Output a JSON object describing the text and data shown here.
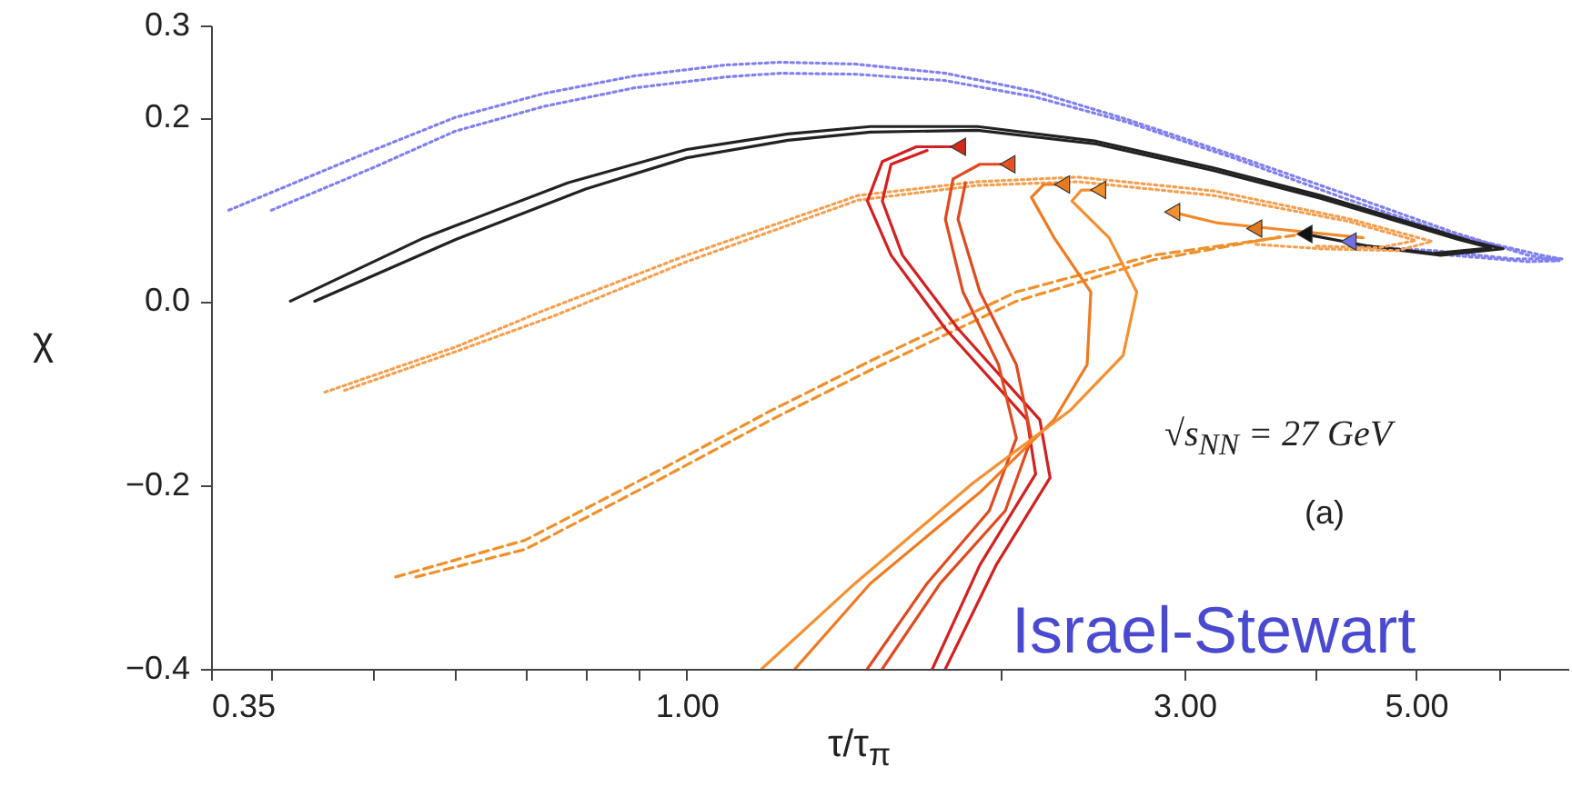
{
  "chart_data": {
    "type": "line",
    "xlabel": "τ/τ$_{π}$",
    "ylabel": "χ",
    "log": "x",
    "xlim": [
      0.35,
      7
    ],
    "ylim": [
      -0.4,
      0.3
    ],
    "xticks": [
      0.35,
      {
        "value": 0.4,
        "label": null
      },
      {
        "value": 0.5,
        "label": null
      },
      {
        "value": 0.6,
        "label": null
      },
      {
        "value": 0.7,
        "label": null
      },
      {
        "value": 0.8,
        "label": null
      },
      {
        "value": 0.9,
        "label": null
      },
      {
        "value": 1,
        "label": "1.00"
      },
      {
        "value": 2,
        "label": null
      },
      {
        "value": 3,
        "label": "3.00"
      },
      {
        "value": 4,
        "label": null
      },
      {
        "value": 5,
        "label": "5.00"
      },
      {
        "value": 6,
        "label": null
      }
    ],
    "yticks": [
      {
        "value": -0.4,
        "label": "−0.4"
      },
      {
        "value": -0.2,
        "label": "−0.2"
      },
      {
        "value": 0,
        "label": "0.0"
      },
      0.2,
      0.3
    ],
    "annotations": [
      "√s$_{NN}$ = 27 GeV",
      "(a)",
      "Israel-Stewart"
    ],
    "series": [
      {
        "color": "#8080f0",
        "line_style": "dotted",
        "x": [
          0.364,
          0.49,
          0.6,
          0.73,
          0.89,
          1.09,
          1.23,
          1.45,
          1.77,
          2.16,
          2.64,
          3.36,
          4.27,
          5.43,
          6.4,
          6.86,
          6.4,
          5.4,
          4.4
        ],
        "values": [
          0.099,
          0.16,
          0.2,
          0.226,
          0.245,
          0.257,
          0.26,
          0.258,
          0.248,
          0.228,
          0.198,
          0.158,
          0.117,
          0.075,
          0.05,
          0.044,
          0.043,
          0.05,
          0.06
        ]
      },
      {
        "color": "#8080f0",
        "line_style": "dotted",
        "x": [
          0.4,
          0.5,
          0.6,
          0.73,
          0.89,
          1.09,
          1.23,
          1.45,
          1.77,
          2.16,
          2.64,
          3.36,
          4.27,
          5.43,
          6.6,
          6.9,
          6.2,
          5.2,
          4.4
        ],
        "values": [
          0.099,
          0.145,
          0.185,
          0.212,
          0.232,
          0.244,
          0.248,
          0.247,
          0.24,
          0.222,
          0.195,
          0.155,
          0.112,
          0.072,
          0.05,
          0.046,
          0.046,
          0.055,
          0.06
        ]
      },
      {
        "color": "#222222",
        "line_style": "solid",
        "x": [
          0.417,
          0.56,
          0.77,
          1.0,
          1.25,
          1.5,
          1.9,
          2.47,
          3.2,
          4.05,
          5.66,
          6.06,
          5.28,
          4.5,
          3.91
        ],
        "values": [
          0.0,
          0.069,
          0.129,
          0.165,
          0.182,
          0.19,
          0.19,
          0.174,
          0.145,
          0.115,
          0.065,
          0.057,
          0.05,
          0.06,
          0.073
        ]
      },
      {
        "color": "#222222",
        "line_style": "solid",
        "x": [
          0.44,
          0.6,
          0.8,
          1.0,
          1.25,
          1.5,
          1.9,
          2.47,
          3.2,
          4.05,
          5.5,
          5.9,
          5.2,
          4.5
        ],
        "values": [
          0.0,
          0.067,
          0.122,
          0.156,
          0.175,
          0.184,
          0.186,
          0.171,
          0.142,
          0.112,
          0.067,
          0.058,
          0.052,
          0.06
        ]
      },
      {
        "color": "#f5a050",
        "line_style": "dotted",
        "x": [
          0.45,
          0.6,
          0.73,
          1.0,
          1.46,
          1.9,
          2.37,
          3.2,
          4.3,
          5.18,
          4.8,
          4.05,
          3.5
        ],
        "values": [
          -0.099,
          -0.05,
          -0.01,
          0.05,
          0.115,
          0.13,
          0.135,
          0.12,
          0.09,
          0.065,
          0.055,
          0.057,
          0.062
        ]
      },
      {
        "color": "#f5a050",
        "line_style": "dotted",
        "x": [
          0.47,
          0.6,
          0.75,
          1.0,
          1.46,
          1.9,
          2.37,
          3.2,
          4.3,
          5.0,
          4.6,
          4.0
        ],
        "values": [
          -0.097,
          -0.055,
          -0.015,
          0.043,
          0.11,
          0.126,
          0.13,
          0.115,
          0.087,
          0.066,
          0.058,
          0.06
        ]
      },
      {
        "color": "#f0902a",
        "line_style": "dashed",
        "x": [
          0.526,
          0.7,
          0.956,
          1.2,
          1.5,
          2.07,
          2.8,
          3.9
        ],
        "values": [
          -0.3,
          -0.26,
          -0.18,
          -0.12,
          -0.065,
          0.01,
          0.05,
          0.073
        ]
      },
      {
        "color": "#f0902a",
        "line_style": "dashed",
        "x": [
          0.55,
          0.7,
          0.956,
          1.2,
          1.5,
          2.07,
          2.8,
          3.7
        ],
        "values": [
          -0.3,
          -0.27,
          -0.19,
          -0.13,
          -0.075,
          0.0,
          0.045,
          0.07
        ]
      },
      {
        "color": "#d42020",
        "line_style": "solid",
        "x": [
          1.72,
          1.91,
          2.16,
          2.12,
          1.77,
          1.57,
          1.49,
          1.54,
          1.66,
          1.82
        ],
        "values": [
          -0.4,
          -0.287,
          -0.188,
          -0.129,
          -0.03,
          0.05,
          0.109,
          0.152,
          0.168,
          0.168
        ]
      },
      {
        "color": "#d42020",
        "line_style": "solid",
        "x": [
          1.77,
          1.98,
          2.23,
          2.18,
          1.82,
          1.61,
          1.54,
          1.57,
          1.7
        ],
        "values": [
          -0.4,
          -0.287,
          -0.192,
          -0.129,
          -0.03,
          0.05,
          0.109,
          0.149,
          0.164
        ]
      },
      {
        "color": "#e04a20",
        "line_style": "solid",
        "x": [
          1.49,
          1.7,
          1.95,
          2.07,
          1.99,
          1.84,
          1.77,
          1.8,
          1.91,
          2.03
        ],
        "values": [
          -0.4,
          -0.307,
          -0.228,
          -0.149,
          -0.069,
          0.01,
          0.089,
          0.133,
          0.149,
          0.149
        ]
      },
      {
        "color": "#e04a20",
        "line_style": "solid",
        "x": [
          1.54,
          1.75,
          2.02,
          2.14,
          2.07,
          1.91,
          1.82,
          1.85
        ],
        "values": [
          -0.4,
          -0.307,
          -0.228,
          -0.149,
          -0.069,
          0.01,
          0.089,
          0.129
        ]
      },
      {
        "color": "#f07a20",
        "line_style": "solid",
        "x": [
          1.27,
          1.5,
          1.91,
          2.25,
          2.42,
          2.44,
          2.25,
          2.14,
          2.2,
          2.29
        ],
        "values": [
          -0.4,
          -0.307,
          -0.208,
          -0.129,
          -0.069,
          0.01,
          0.069,
          0.113,
          0.127,
          0.127
        ]
      },
      {
        "color": "#f59030",
        "line_style": "solid",
        "x": [
          1.18,
          1.45,
          1.88,
          2.33,
          2.62,
          2.7,
          2.54,
          2.34,
          2.39,
          2.48
        ],
        "values": [
          -0.4,
          -0.307,
          -0.198,
          -0.119,
          -0.059,
          0.01,
          0.069,
          0.109,
          0.121,
          0.121
        ]
      },
      {
        "color": "#f08a2a",
        "line_style": "solid",
        "x": [
          2.92,
          3.23,
          3.64,
          4.45
        ],
        "values": [
          0.097,
          0.085,
          0.079,
          0.069
        ]
      },
      {
        "type": "scatter",
        "marker": "triangle",
        "x": [
          1.82,
          2.03,
          2.29,
          2.48,
          2.92,
          3.5,
          3.91,
          4.31
        ],
        "values": [
          0.168,
          0.149,
          0.127,
          0.121,
          0.097,
          0.079,
          0.073,
          0.065
        ],
        "colors": [
          "#d42a1a",
          "#e8501e",
          "#e87a1e",
          "#f0902a",
          "#f09030",
          "#e07a20",
          "#111111",
          "#7070e0"
        ]
      }
    ]
  }
}
